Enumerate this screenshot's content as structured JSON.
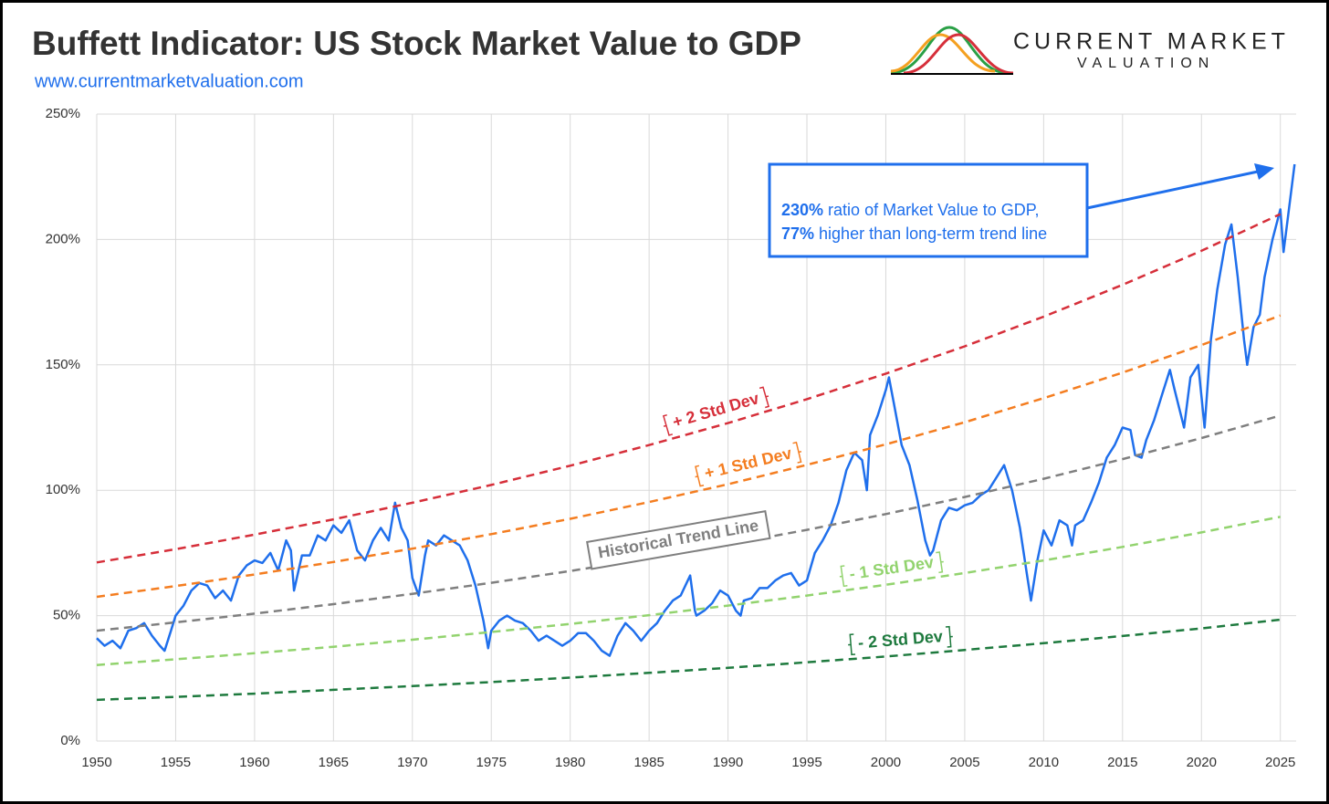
{
  "header": {
    "title": "Buffett Indicator: US Stock Market Value to GDP",
    "url": "www.currentmarketvaluation.com",
    "logo_line1": "CURRENT MARKET",
    "logo_line2": "VALUATION"
  },
  "chart_data": {
    "type": "line",
    "xlim": [
      1950,
      2026
    ],
    "ylim": [
      0,
      250
    ],
    "grid": true,
    "xticks": [
      1950,
      1955,
      1960,
      1965,
      1970,
      1975,
      1980,
      1985,
      1990,
      1995,
      2000,
      2005,
      2010,
      2015,
      2020,
      2025
    ],
    "yticks": [
      {
        "value": 0,
        "label": "0%"
      },
      {
        "value": 50,
        "label": "50%"
      },
      {
        "value": 100,
        "label": "100%"
      },
      {
        "value": 150,
        "label": "150%"
      },
      {
        "value": 200,
        "label": "200%"
      },
      {
        "value": 250,
        "label": "250%"
      }
    ],
    "annotation": {
      "line1_bold": "230%",
      "line1_text": "ratio of Market Value to GDP,",
      "line2_bold": "77%",
      "line2_text": "higher than long-term trend line"
    },
    "series": [
      {
        "color": "#1f6fec",
        "x": [
          1950,
          1950.5,
          1951,
          1951.5,
          1952,
          1952.5,
          1953,
          1953.5,
          1954,
          1954.3,
          1954.7,
          1955,
          1955.5,
          1956,
          1956.5,
          1957,
          1957.5,
          1958,
          1958.5,
          1959,
          1959.5,
          1960,
          1960.5,
          1961,
          1961.5,
          1962,
          1962.3,
          1962.5,
          1963,
          1963.5,
          1964,
          1964.5,
          1965,
          1965.5,
          1966,
          1966.5,
          1967,
          1967.5,
          1968,
          1968.5,
          1968.9,
          1969.3,
          1969.7,
          1970,
          1970.4,
          1970.8,
          1971,
          1971.5,
          1972,
          1972.5,
          1973,
          1973.5,
          1974,
          1974.5,
          1974.8,
          1975,
          1975.5,
          1976,
          1976.5,
          1977,
          1977.5,
          1978,
          1978.5,
          1979,
          1979.5,
          1980,
          1980.5,
          1981,
          1981.5,
          1982,
          1982.5,
          1983,
          1983.5,
          1984,
          1984.5,
          1985,
          1985.5,
          1986,
          1986.5,
          1987,
          1987.6,
          1987.9,
          1988,
          1988.5,
          1989,
          1989.5,
          1990,
          1990.5,
          1990.8,
          1991,
          1991.5,
          1992,
          1992.5,
          1993,
          1993.5,
          1994,
          1994.5,
          1995,
          1995.5,
          1996,
          1996.5,
          1997,
          1997.5,
          1998,
          1998.5,
          1998.8,
          1999,
          1999.5,
          2000,
          2000.2,
          2000.5,
          2001,
          2001.5,
          2002,
          2002.5,
          2002.8,
          2003,
          2003.5,
          2004,
          2004.5,
          2005,
          2005.5,
          2006,
          2006.5,
          2007,
          2007.5,
          2008,
          2008.5,
          2008.9,
          2009.2,
          2009.6,
          2010,
          2010.5,
          2011,
          2011.5,
          2011.8,
          2012,
          2012.5,
          2013,
          2013.5,
          2014,
          2014.5,
          2015,
          2015.5,
          2015.8,
          2016.2,
          2016.5,
          2017,
          2017.5,
          2018,
          2018.3,
          2018.9,
          2019.3,
          2019.8,
          2020.2,
          2020.6,
          2021,
          2021.5,
          2021.9,
          2022.3,
          2022.7,
          2022.9,
          2023.3,
          2023.7,
          2024,
          2024.5,
          2025,
          2025.2,
          2025.5,
          2025.9
        ],
        "values": [
          41,
          38,
          40,
          37,
          44,
          45,
          47,
          42,
          38,
          36,
          44,
          50,
          54,
          60,
          63,
          62,
          57,
          60,
          56,
          66,
          70,
          72,
          71,
          75,
          68,
          80,
          76,
          60,
          74,
          74,
          82,
          80,
          86,
          83,
          88,
          76,
          72,
          80,
          85,
          80,
          95,
          85,
          80,
          65,
          58,
          74,
          80,
          78,
          82,
          80,
          78,
          72,
          62,
          48,
          37,
          44,
          48,
          50,
          48,
          47,
          44,
          40,
          42,
          40,
          38,
          40,
          43,
          43,
          40,
          36,
          34,
          42,
          47,
          44,
          40,
          44,
          47,
          52,
          56,
          58,
          66,
          52,
          50,
          52,
          55,
          60,
          58,
          52,
          50,
          56,
          57,
          61,
          61,
          64,
          66,
          67,
          62,
          64,
          75,
          80,
          86,
          95,
          108,
          115,
          112,
          100,
          122,
          130,
          140,
          145,
          135,
          118,
          110,
          96,
          80,
          74,
          76,
          88,
          93,
          92,
          94,
          95,
          98,
          100,
          105,
          110,
          100,
          85,
          68,
          56,
          72,
          84,
          78,
          88,
          86,
          78,
          86,
          88,
          95,
          103,
          113,
          118,
          125,
          124,
          114,
          113,
          120,
          128,
          138,
          148,
          140,
          125,
          145,
          150,
          125,
          160,
          180,
          198,
          206,
          185,
          160,
          150,
          165,
          170,
          185,
          200,
          212,
          195,
          210,
          230
        ]
      },
      {
        "name": "+ 2 Std Dev",
        "color": "#d62f3a",
        "x": [
          1950,
          1955,
          1960,
          1965,
          1970,
          1975,
          1980,
          1985,
          1990,
          1995,
          2000,
          2005,
          2010,
          2015,
          2020,
          2025
        ],
        "values": [
          71.2,
          76.5,
          82.3,
          88.4,
          95.0,
          102.1,
          109.8,
          118.0,
          126.8,
          136.3,
          146.5,
          157.4,
          169.2,
          181.9,
          195.5,
          210.1
        ]
      },
      {
        "name": "+ 1 Std Dev",
        "color": "#f47d20",
        "x": [
          1950,
          1955,
          1960,
          1965,
          1970,
          1975,
          1980,
          1985,
          1990,
          1995,
          2000,
          2005,
          2010,
          2015,
          2020,
          2025
        ],
        "values": [
          57.5,
          61.8,
          66.4,
          71.4,
          76.7,
          82.5,
          88.6,
          95.3,
          102.4,
          110.1,
          118.3,
          127.1,
          136.7,
          146.9,
          157.9,
          169.7
        ]
      },
      {
        "name": "Historical Trend Line",
        "color": "#7f7f7f",
        "x": [
          1950,
          1955,
          1960,
          1965,
          1970,
          1975,
          1980,
          1985,
          1990,
          1995,
          2000,
          2005,
          2010,
          2015,
          2020,
          2025
        ],
        "values": [
          44.0,
          47.3,
          50.8,
          54.6,
          58.7,
          63.1,
          67.8,
          72.9,
          78.4,
          84.2,
          90.5,
          97.3,
          104.6,
          112.4,
          120.8,
          129.8
        ]
      },
      {
        "name": "- 1 Std Dev",
        "color": "#92d36e",
        "x": [
          1950,
          1955,
          1960,
          1965,
          1970,
          1975,
          1980,
          1985,
          1990,
          1995,
          2000,
          2005,
          2010,
          2015,
          2020,
          2025
        ],
        "values": [
          30.3,
          32.6,
          35.0,
          37.6,
          40.4,
          43.5,
          46.7,
          50.2,
          54.0,
          58.0,
          62.3,
          67.0,
          72.0,
          77.4,
          83.2,
          89.4
        ]
      },
      {
        "name": "- 2 Std Dev",
        "color": "#1e7a3e",
        "x": [
          1950,
          1955,
          1960,
          1965,
          1970,
          1975,
          1980,
          1985,
          1990,
          1995,
          2000,
          2005,
          2010,
          2015,
          2020,
          2025
        ],
        "values": [
          16.4,
          17.6,
          18.9,
          20.4,
          21.9,
          23.5,
          25.3,
          27.2,
          29.2,
          31.4,
          33.7,
          36.3,
          39.0,
          41.9,
          44.9,
          48.4
        ]
      }
    ]
  }
}
